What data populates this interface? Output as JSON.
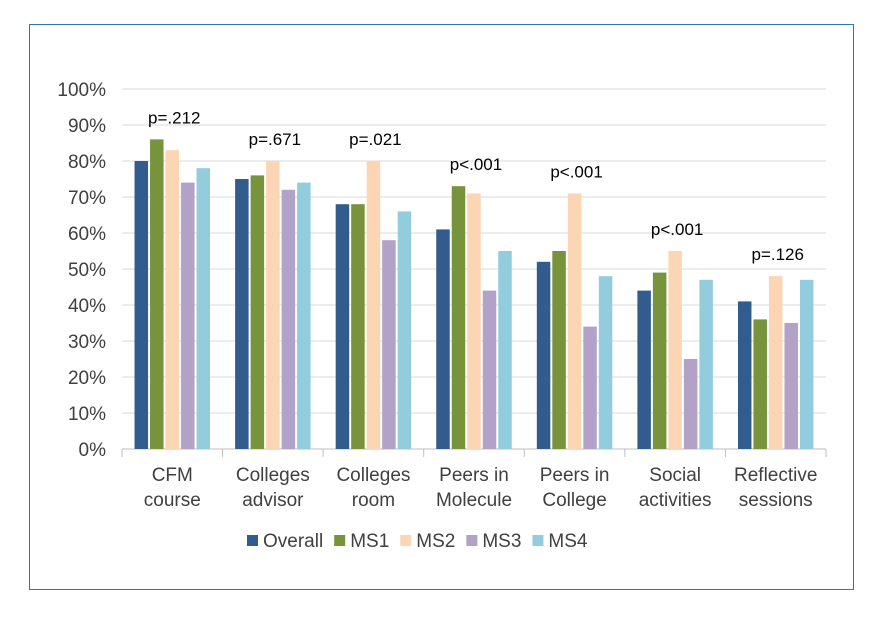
{
  "chart_data": {
    "type": "bar",
    "categories": [
      [
        "CFM",
        "course"
      ],
      [
        "Colleges",
        "advisor"
      ],
      [
        "Colleges",
        "room"
      ],
      [
        "Peers in",
        "Molecule"
      ],
      [
        "Peers in",
        "College"
      ],
      [
        "Social",
        "activities"
      ],
      [
        "Reflective",
        "sessions"
      ]
    ],
    "series": [
      {
        "name": "Overall",
        "color": "#335c8e",
        "values": [
          80,
          75,
          68,
          61,
          52,
          44,
          41
        ]
      },
      {
        "name": "MS1",
        "color": "#77933c",
        "values": [
          86,
          76,
          68,
          73,
          55,
          49,
          36
        ]
      },
      {
        "name": "MS2",
        "color": "#fcd5b5",
        "values": [
          83,
          80,
          80,
          71,
          71,
          55,
          48
        ]
      },
      {
        "name": "MS3",
        "color": "#b3a2c7",
        "values": [
          74,
          72,
          58,
          44,
          34,
          25,
          35
        ]
      },
      {
        "name": "MS4",
        "color": "#93cddd",
        "values": [
          78,
          74,
          66,
          55,
          48,
          47,
          47
        ]
      }
    ],
    "annotations": [
      "p=.212",
      "p=.671",
      "p=.021",
      "p<.001",
      "p<.001",
      "p<.001",
      "p=.126"
    ],
    "yticks": [
      "0%",
      "10%",
      "20%",
      "30%",
      "40%",
      "50%",
      "60%",
      "70%",
      "80%",
      "90%",
      "100%"
    ],
    "ylim": [
      0,
      100
    ],
    "grid": true,
    "legend_position": "bottom",
    "title": "",
    "xlabel": "",
    "ylabel": ""
  }
}
